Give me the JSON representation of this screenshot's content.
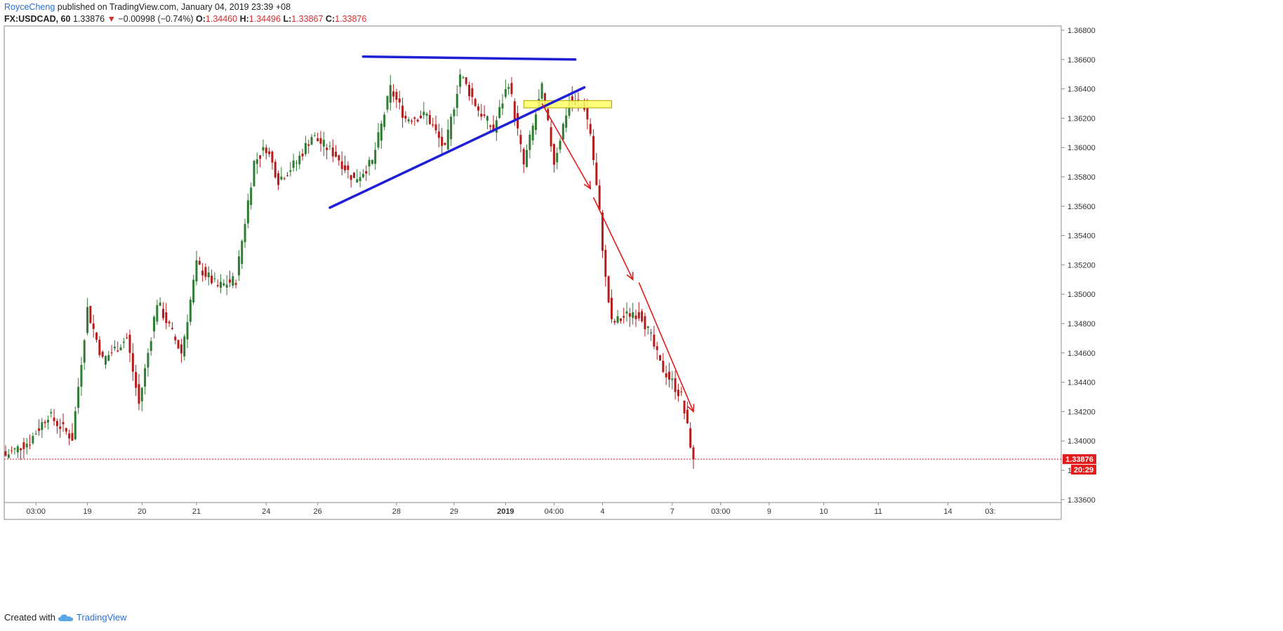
{
  "header": {
    "author": "RoyceCheng",
    "published_text": "published on TradingView.com, January 04, 2019 23:39 +08",
    "symbol": "FX:USDCAD, 60",
    "last": "1.33876",
    "change": "−0.00998 (−0.74%)",
    "o_label": "O:",
    "o_value": "1.34460",
    "h_label": "H:",
    "h_value": "1.34496",
    "l_label": "L:",
    "l_value": "1.33867",
    "c_label": "C:",
    "c_value": "1.33876"
  },
  "footer": {
    "created_with": "Created with",
    "brand": "TradingView"
  },
  "colors": {
    "up": "#2e7d32",
    "down": "#b71c1c",
    "trendline": "#1f1fd6",
    "arrow": "#e31b1b",
    "zone": "#ffff66",
    "price_tag": "#e31b1b"
  },
  "price_tag": {
    "price": "1.33876",
    "countdown": "20:29"
  },
  "chart_data": {
    "type": "candlestick",
    "symbol": "FX:USDCAD",
    "interval": "60",
    "y_ticks": [
      1.368,
      1.366,
      1.364,
      1.362,
      1.36,
      1.358,
      1.356,
      1.354,
      1.352,
      1.35,
      1.348,
      1.346,
      1.344,
      1.342,
      1.34,
      1.338,
      1.336
    ],
    "y_tick_labels": [
      "1.36800",
      "1.36600",
      "1.36400",
      "1.36200",
      "1.36000",
      "1.35800",
      "1.35600",
      "1.35400",
      "1.35200",
      "1.35000",
      "1.34800",
      "1.34600",
      "1.34400",
      "1.34200",
      "1.34000",
      "1.33800",
      "1.33600"
    ],
    "ylim": [
      1.3355,
      1.3685
    ],
    "x_tick_labels": [
      "03:00",
      "19",
      "20",
      "21",
      "24",
      "26",
      "28",
      "29",
      "2019",
      "04:00",
      "4",
      "7",
      "03:00",
      "9",
      "10",
      "11",
      "14",
      "03:"
    ],
    "x_tick_index": [
      10,
      27,
      45,
      63,
      86,
      103,
      129,
      148,
      165,
      181,
      197,
      220,
      236,
      252,
      270,
      288,
      311,
      325
    ],
    "bar_count": 327,
    "last_price": 1.33876,
    "key_points": [
      [
        0,
        1.339
      ],
      [
        8,
        1.34
      ],
      [
        14,
        1.3418
      ],
      [
        22,
        1.3402
      ],
      [
        27,
        1.349
      ],
      [
        32,
        1.3455
      ],
      [
        40,
        1.347
      ],
      [
        44,
        1.3425
      ],
      [
        50,
        1.3495
      ],
      [
        58,
        1.346
      ],
      [
        63,
        1.352
      ],
      [
        70,
        1.3505
      ],
      [
        76,
        1.351
      ],
      [
        82,
        1.359
      ],
      [
        86,
        1.36
      ],
      [
        90,
        1.3578
      ],
      [
        96,
        1.359
      ],
      [
        101,
        1.3608
      ],
      [
        109,
        1.3595
      ],
      [
        115,
        1.3578
      ],
      [
        121,
        1.359
      ],
      [
        127,
        1.364
      ],
      [
        132,
        1.362
      ],
      [
        139,
        1.3622
      ],
      [
        145,
        1.3598
      ],
      [
        150,
        1.365
      ],
      [
        156,
        1.3626
      ],
      [
        161,
        1.3612
      ],
      [
        166,
        1.3645
      ],
      [
        171,
        1.3588
      ],
      [
        177,
        1.364
      ],
      [
        181,
        1.359
      ],
      [
        186,
        1.3632
      ],
      [
        191,
        1.3628
      ],
      [
        193,
        1.361
      ],
      [
        196,
        1.3555
      ],
      [
        198,
        1.351
      ],
      [
        200,
        1.348
      ],
      [
        203,
        1.3483
      ],
      [
        207,
        1.3488
      ],
      [
        210,
        1.3485
      ],
      [
        213,
        1.347
      ],
      [
        216,
        1.3452
      ],
      [
        220,
        1.344
      ],
      [
        223,
        1.343
      ],
      [
        227,
        1.33876
      ]
    ],
    "trendlines": [
      {
        "name": "resistance",
        "from": [
          118,
          1.3662
        ],
        "to": [
          188,
          1.366
        ]
      },
      {
        "name": "support",
        "from": [
          107,
          1.3559
        ],
        "to": [
          191,
          1.3641
        ]
      }
    ],
    "zone": {
      "from": [
        171,
        1.3632
      ],
      "to": [
        200,
        1.3627
      ]
    },
    "arrows": [
      {
        "from": [
          177,
          1.363
        ],
        "to": [
          193,
          1.3572
        ]
      },
      {
        "from": [
          194,
          1.3566
        ],
        "to": [
          207,
          1.351
        ]
      },
      {
        "from": [
          209,
          1.3508
        ],
        "to": [
          227,
          1.342
        ]
      }
    ],
    "grid": false
  }
}
